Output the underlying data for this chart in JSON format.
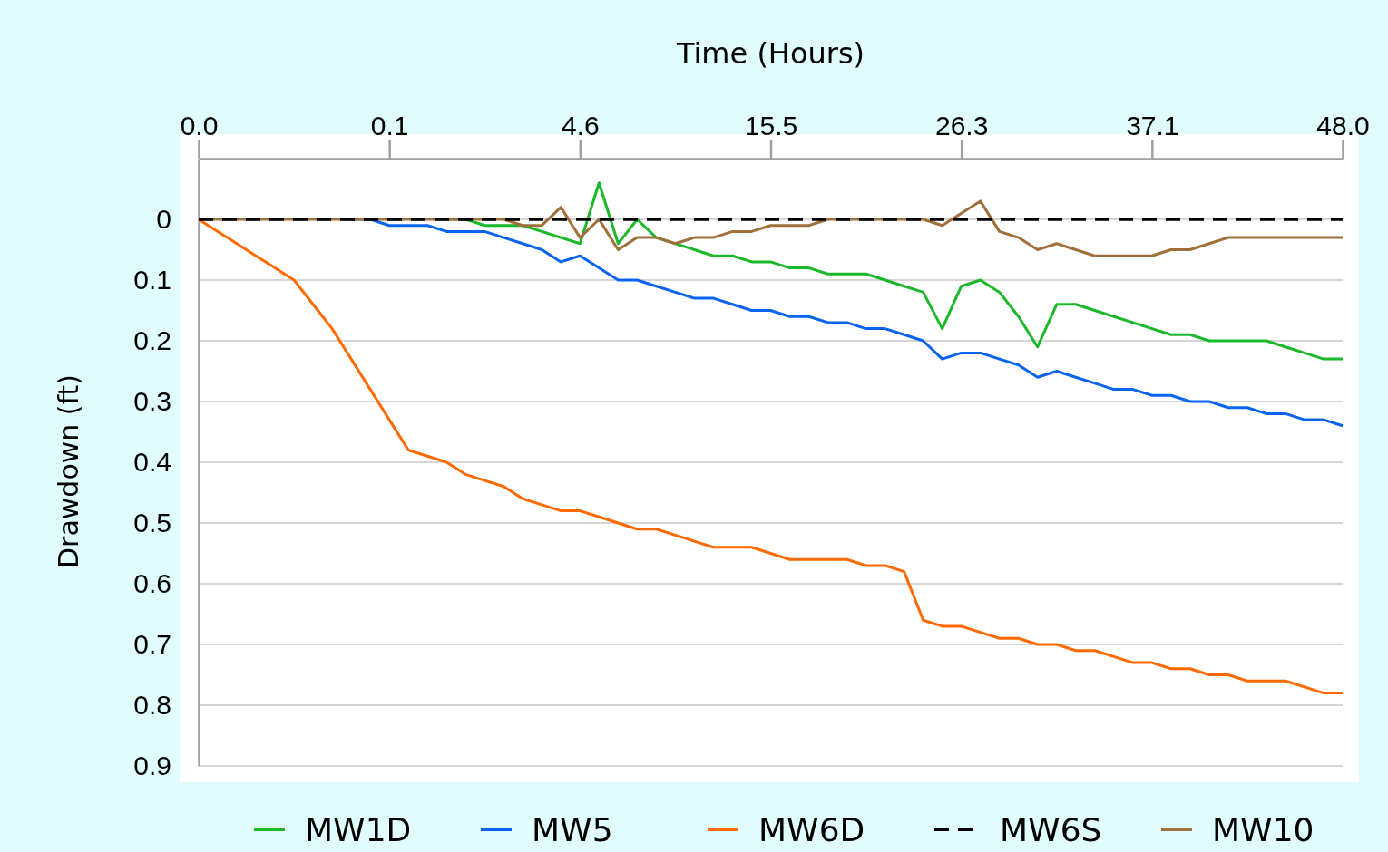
{
  "chart_data": {
    "type": "line",
    "xlabel": "Time (Hours)",
    "ylabel": "Drawdown (ft)",
    "categories": [
      "0.0",
      null,
      null,
      null,
      null,
      null,
      null,
      null,
      null,
      null,
      "0.1",
      null,
      null,
      null,
      null,
      null,
      null,
      null,
      null,
      null,
      "4.6",
      null,
      null,
      null,
      null,
      null,
      null,
      null,
      null,
      null,
      "15.5",
      null,
      null,
      null,
      null,
      null,
      null,
      null,
      null,
      null,
      "26.3",
      null,
      null,
      null,
      null,
      null,
      null,
      null,
      null,
      null,
      "37.1",
      null,
      null,
      null,
      null,
      null,
      null,
      null,
      null,
      null,
      "48.0"
    ],
    "ylim": [
      0.9,
      -0.1
    ],
    "yticks": [
      0,
      {
        "value": 0.1,
        "label": "0.1"
      },
      {
        "value": 0.2,
        "label": "0.2"
      },
      {
        "value": 0.3,
        "label": "0.3"
      },
      {
        "value": 0.4,
        "label": "0.4"
      },
      {
        "value": 0.5,
        "label": "0.5"
      },
      {
        "value": 0.6,
        "label": "0.6"
      },
      {
        "value": 0.7,
        "label": "0.7"
      },
      {
        "value": 0.8,
        "label": "0.8"
      },
      {
        "value": 0.9,
        "label": "0.9"
      }
    ],
    "grid": "y",
    "legend": "bottom",
    "line_style": "solid",
    "series": [
      {
        "name": "MW1D",
        "color": "#1cb82c",
        "values": [
          null,
          null,
          null,
          null,
          null,
          null,
          null,
          null,
          null,
          null,
          null,
          null,
          null,
          0,
          0,
          0.01,
          0.01,
          0.01,
          0.02,
          0.03,
          0.04,
          -0.06,
          0.04,
          0,
          0.03,
          0.04,
          0.05,
          0.06,
          0.06,
          0.07,
          0.07,
          0.08,
          0.08,
          0.09,
          0.09,
          0.09,
          0.1,
          0.11,
          0.12,
          0.18,
          0.11,
          0.1,
          0.12,
          0.16,
          0.21,
          0.14,
          0.14,
          0.15,
          0.16,
          0.17,
          0.18,
          0.19,
          0.19,
          0.2,
          0.2,
          0.2,
          0.2,
          0.21,
          0.22,
          0.23,
          0.23
        ]
      },
      {
        "name": "MW5",
        "color": "#0a64f0",
        "values": [
          null,
          null,
          null,
          null,
          null,
          null,
          null,
          null,
          0,
          0,
          0.01,
          0.01,
          0.01,
          0.02,
          0.02,
          0.02,
          0.03,
          0.04,
          0.05,
          0.07,
          0.06,
          0.08,
          0.1,
          0.1,
          0.11,
          0.12,
          0.13,
          0.13,
          0.14,
          0.15,
          0.15,
          0.16,
          0.16,
          0.17,
          0.17,
          0.18,
          0.18,
          0.19,
          0.2,
          0.23,
          0.22,
          0.22,
          0.23,
          0.24,
          0.26,
          0.25,
          0.26,
          0.27,
          0.28,
          0.28,
          0.29,
          0.29,
          0.3,
          0.3,
          0.31,
          0.31,
          0.32,
          0.32,
          0.33,
          0.33,
          0.34
        ]
      },
      {
        "name": "MW6D",
        "color": "#ff6a00",
        "values": [
          0,
          0.02,
          0.04,
          0.06,
          0.08,
          0.1,
          0.14,
          0.18,
          0.23,
          0.28,
          0.33,
          0.38,
          0.39,
          0.4,
          0.42,
          0.43,
          0.44,
          0.46,
          0.47,
          0.48,
          0.48,
          0.49,
          0.5,
          0.51,
          0.51,
          0.52,
          0.53,
          0.54,
          0.54,
          0.54,
          0.55,
          0.56,
          0.56,
          0.56,
          0.56,
          0.57,
          0.57,
          0.58,
          0.66,
          0.67,
          0.67,
          0.68,
          0.69,
          0.69,
          0.7,
          0.7,
          0.71,
          0.71,
          0.72,
          0.73,
          0.73,
          0.74,
          0.74,
          0.75,
          0.75,
          0.76,
          0.76,
          0.76,
          0.77,
          0.78,
          0.78
        ]
      },
      {
        "name": "MW6S",
        "color": "#000000",
        "line_style": "dashed",
        "values": [
          0,
          0,
          0,
          0,
          0,
          0,
          0,
          0,
          0,
          0,
          0,
          0,
          0,
          0,
          0,
          0,
          0,
          0,
          0,
          0,
          0,
          0,
          0,
          0,
          0,
          0,
          0,
          0,
          0,
          0,
          0,
          0,
          0,
          0,
          0,
          0,
          0,
          0,
          0,
          0,
          0,
          0,
          0,
          0,
          0,
          0,
          0,
          0,
          0,
          0,
          0,
          0,
          0,
          0,
          0,
          0,
          0,
          0,
          0,
          0,
          0
        ]
      },
      {
        "name": "MW10",
        "color": "#a0703c",
        "values": [
          0,
          0,
          0,
          0,
          0,
          0,
          0,
          0,
          0,
          0,
          0,
          0,
          0,
          0,
          0,
          0,
          0,
          0.01,
          0.01,
          -0.02,
          0.03,
          0,
          0.05,
          0.03,
          0.03,
          0.04,
          0.03,
          0.03,
          0.02,
          0.02,
          0.01,
          0.01,
          0.01,
          0,
          0,
          0,
          0,
          0,
          0,
          0.01,
          -0.01,
          -0.03,
          0.02,
          0.03,
          0.05,
          0.04,
          0.05,
          0.06,
          0.06,
          0.06,
          0.06,
          0.05,
          0.05,
          0.04,
          0.03,
          0.03,
          0.03,
          0.03,
          0.03,
          0.03,
          0.03
        ]
      }
    ]
  }
}
